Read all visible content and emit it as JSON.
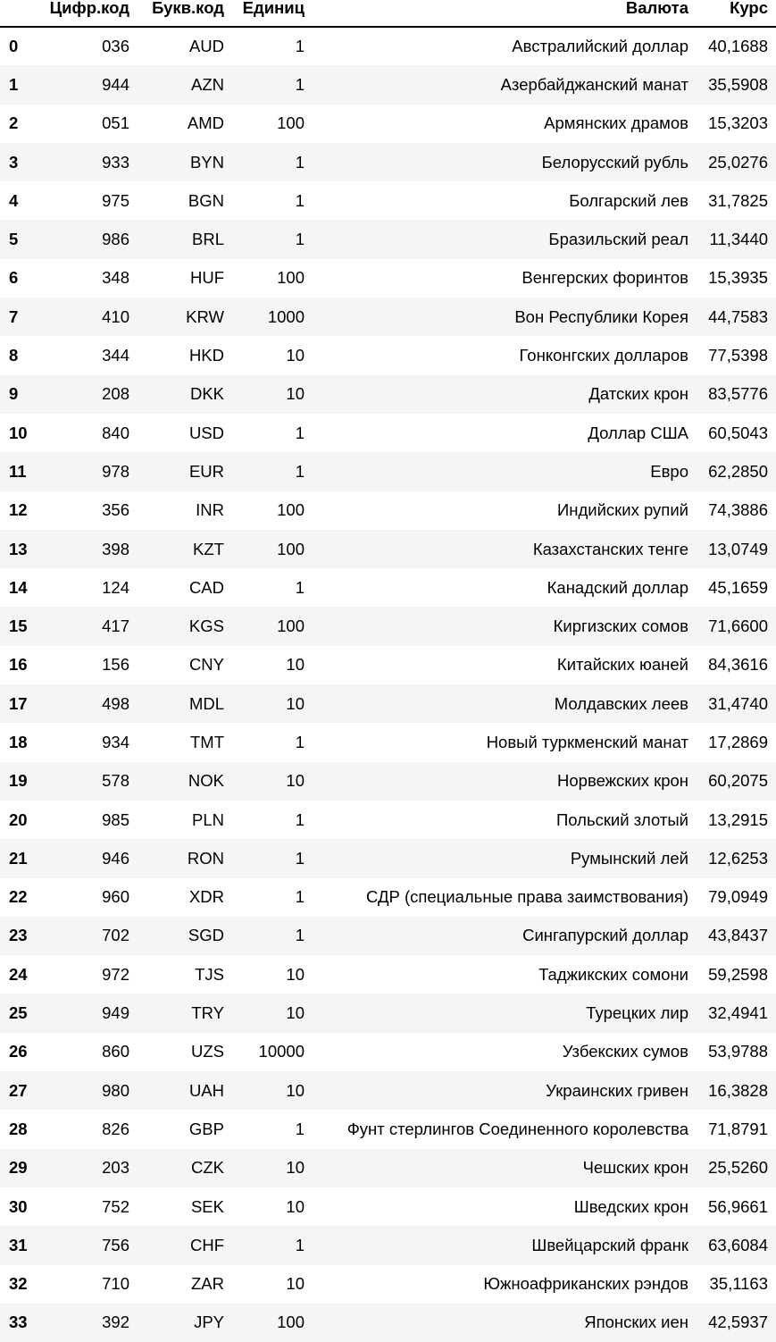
{
  "table": {
    "columns": [
      "Цифр.код",
      "Букв.код",
      "Единиц",
      "Валюта",
      "Курс"
    ],
    "rows": [
      {
        "index": "0",
        "num_code": "036",
        "char_code": "AUD",
        "nominal": "1",
        "name": "Австралийский доллар",
        "rate": "40,1688"
      },
      {
        "index": "1",
        "num_code": "944",
        "char_code": "AZN",
        "nominal": "1",
        "name": "Азербайджанский манат",
        "rate": "35,5908"
      },
      {
        "index": "2",
        "num_code": "051",
        "char_code": "AMD",
        "nominal": "100",
        "name": "Армянских драмов",
        "rate": "15,3203"
      },
      {
        "index": "3",
        "num_code": "933",
        "char_code": "BYN",
        "nominal": "1",
        "name": "Белорусский рубль",
        "rate": "25,0276"
      },
      {
        "index": "4",
        "num_code": "975",
        "char_code": "BGN",
        "nominal": "1",
        "name": "Болгарский лев",
        "rate": "31,7825"
      },
      {
        "index": "5",
        "num_code": "986",
        "char_code": "BRL",
        "nominal": "1",
        "name": "Бразильский реал",
        "rate": "11,3440"
      },
      {
        "index": "6",
        "num_code": "348",
        "char_code": "HUF",
        "nominal": "100",
        "name": "Венгерских форинтов",
        "rate": "15,3935"
      },
      {
        "index": "7",
        "num_code": "410",
        "char_code": "KRW",
        "nominal": "1000",
        "name": "Вон Республики Корея",
        "rate": "44,7583"
      },
      {
        "index": "8",
        "num_code": "344",
        "char_code": "HKD",
        "nominal": "10",
        "name": "Гонконгских долларов",
        "rate": "77,5398"
      },
      {
        "index": "9",
        "num_code": "208",
        "char_code": "DKK",
        "nominal": "10",
        "name": "Датских крон",
        "rate": "83,5776"
      },
      {
        "index": "10",
        "num_code": "840",
        "char_code": "USD",
        "nominal": "1",
        "name": "Доллар США",
        "rate": "60,5043"
      },
      {
        "index": "11",
        "num_code": "978",
        "char_code": "EUR",
        "nominal": "1",
        "name": "Евро",
        "rate": "62,2850"
      },
      {
        "index": "12",
        "num_code": "356",
        "char_code": "INR",
        "nominal": "100",
        "name": "Индийских рупий",
        "rate": "74,3886"
      },
      {
        "index": "13",
        "num_code": "398",
        "char_code": "KZT",
        "nominal": "100",
        "name": "Казахстанских тенге",
        "rate": "13,0749"
      },
      {
        "index": "14",
        "num_code": "124",
        "char_code": "CAD",
        "nominal": "1",
        "name": "Канадский доллар",
        "rate": "45,1659"
      },
      {
        "index": "15",
        "num_code": "417",
        "char_code": "KGS",
        "nominal": "100",
        "name": "Киргизских сомов",
        "rate": "71,6600"
      },
      {
        "index": "16",
        "num_code": "156",
        "char_code": "CNY",
        "nominal": "10",
        "name": "Китайских юаней",
        "rate": "84,3616"
      },
      {
        "index": "17",
        "num_code": "498",
        "char_code": "MDL",
        "nominal": "10",
        "name": "Молдавских леев",
        "rate": "31,4740"
      },
      {
        "index": "18",
        "num_code": "934",
        "char_code": "TMT",
        "nominal": "1",
        "name": "Новый туркменский манат",
        "rate": "17,2869"
      },
      {
        "index": "19",
        "num_code": "578",
        "char_code": "NOK",
        "nominal": "10",
        "name": "Норвежских крон",
        "rate": "60,2075"
      },
      {
        "index": "20",
        "num_code": "985",
        "char_code": "PLN",
        "nominal": "1",
        "name": "Польский злотый",
        "rate": "13,2915"
      },
      {
        "index": "21",
        "num_code": "946",
        "char_code": "RON",
        "nominal": "1",
        "name": "Румынский лей",
        "rate": "12,6253"
      },
      {
        "index": "22",
        "num_code": "960",
        "char_code": "XDR",
        "nominal": "1",
        "name": "СДР (специальные права заимствования)",
        "rate": "79,0949"
      },
      {
        "index": "23",
        "num_code": "702",
        "char_code": "SGD",
        "nominal": "1",
        "name": "Сингапурский доллар",
        "rate": "43,8437"
      },
      {
        "index": "24",
        "num_code": "972",
        "char_code": "TJS",
        "nominal": "10",
        "name": "Таджикских сомони",
        "rate": "59,2598"
      },
      {
        "index": "25",
        "num_code": "949",
        "char_code": "TRY",
        "nominal": "10",
        "name": "Турецких лир",
        "rate": "32,4941"
      },
      {
        "index": "26",
        "num_code": "860",
        "char_code": "UZS",
        "nominal": "10000",
        "name": "Узбекских сумов",
        "rate": "53,9788"
      },
      {
        "index": "27",
        "num_code": "980",
        "char_code": "UAH",
        "nominal": "10",
        "name": "Украинских гривен",
        "rate": "16,3828"
      },
      {
        "index": "28",
        "num_code": "826",
        "char_code": "GBP",
        "nominal": "1",
        "name": "Фунт стерлингов Соединенного королевства",
        "rate": "71,8791"
      },
      {
        "index": "29",
        "num_code": "203",
        "char_code": "CZK",
        "nominal": "10",
        "name": "Чешских крон",
        "rate": "25,5260"
      },
      {
        "index": "30",
        "num_code": "752",
        "char_code": "SEK",
        "nominal": "10",
        "name": "Шведских крон",
        "rate": "56,9661"
      },
      {
        "index": "31",
        "num_code": "756",
        "char_code": "CHF",
        "nominal": "1",
        "name": "Швейцарский франк",
        "rate": "63,6084"
      },
      {
        "index": "32",
        "num_code": "710",
        "char_code": "ZAR",
        "nominal": "10",
        "name": "Южноафриканских рэндов",
        "rate": "35,1163"
      },
      {
        "index": "33",
        "num_code": "392",
        "char_code": "JPY",
        "nominal": "100",
        "name": "Японских иен",
        "rate": "42,5937"
      }
    ]
  },
  "colors": {
    "stripe": "#f5f5f5",
    "text": "#000000",
    "background": "#ffffff"
  }
}
